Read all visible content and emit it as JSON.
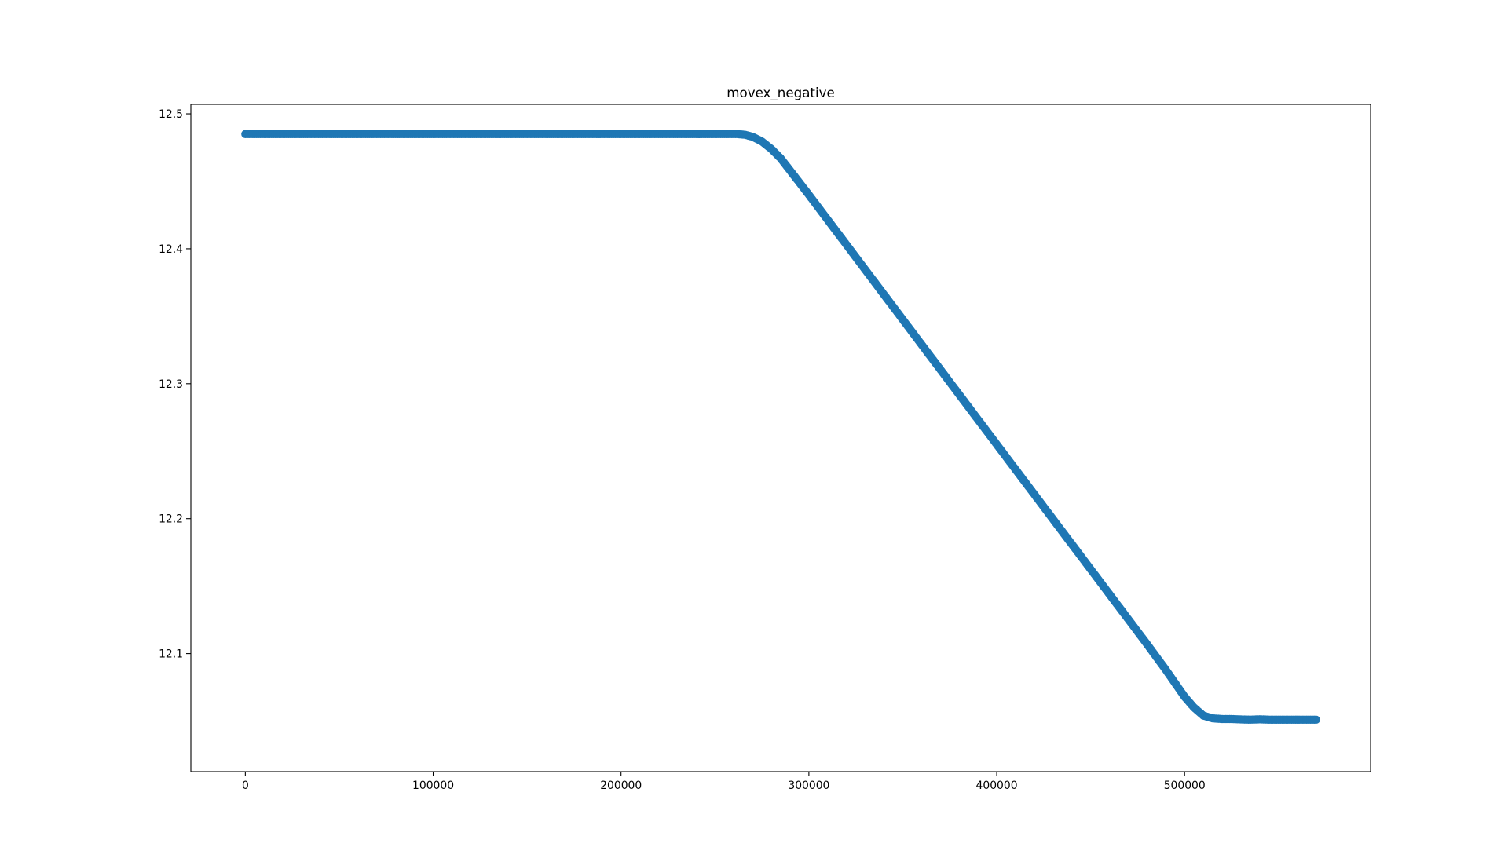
{
  "chart_data": {
    "type": "scatter",
    "title": "movex_negative",
    "xlabel": "",
    "ylabel": "",
    "xlim": [
      -29000,
      599000
    ],
    "ylim": [
      12.0125,
      12.507
    ],
    "x_ticks": [
      0,
      100000,
      200000,
      300000,
      400000,
      500000
    ],
    "x_tick_labels": [
      "0",
      "100000",
      "200000",
      "300000",
      "400000",
      "500000"
    ],
    "y_ticks": [
      12.1,
      12.2,
      12.3,
      12.4,
      12.5
    ],
    "y_tick_labels": [
      "12.1",
      "12.2",
      "12.3",
      "12.4",
      "12.5"
    ],
    "grid": false,
    "legend": "none",
    "marker_color": "#1f77b4",
    "series": [
      {
        "x": [
          0,
          20000,
          40000,
          60000,
          80000,
          100000,
          120000,
          140000,
          160000,
          180000,
          200000,
          220000,
          240000,
          255000,
          262000,
          266000,
          270000,
          275000,
          280000,
          285000,
          290000,
          300000,
          310000,
          320000,
          330000,
          340000,
          350000,
          360000,
          370000,
          380000,
          390000,
          400000,
          410000,
          420000,
          430000,
          440000,
          450000,
          460000,
          470000,
          480000,
          485000,
          490000,
          495000,
          500000,
          505000,
          510000,
          515000,
          520000,
          525000,
          530000,
          535000,
          540000,
          545000,
          550000,
          555000,
          560000,
          565000,
          570000
        ],
        "y": [
          12.485,
          12.485,
          12.485,
          12.485,
          12.485,
          12.485,
          12.485,
          12.485,
          12.485,
          12.485,
          12.485,
          12.485,
          12.485,
          12.485,
          12.485,
          12.4845,
          12.483,
          12.4795,
          12.474,
          12.467,
          12.458,
          12.44,
          12.4215,
          12.403,
          12.3845,
          12.366,
          12.3475,
          12.329,
          12.3105,
          12.292,
          12.2735,
          12.255,
          12.2365,
          12.218,
          12.1995,
          12.181,
          12.1625,
          12.144,
          12.1255,
          12.107,
          12.0975,
          12.088,
          12.078,
          12.068,
          12.06,
          12.054,
          12.052,
          12.0515,
          12.0515,
          12.0512,
          12.051,
          12.0513,
          12.051,
          12.051,
          12.051,
          12.051,
          12.051,
          12.051
        ]
      }
    ]
  }
}
